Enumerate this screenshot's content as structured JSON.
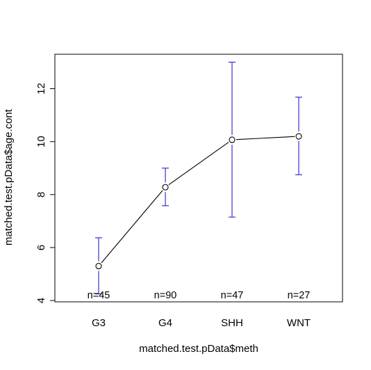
{
  "chart_data": {
    "type": "line",
    "title": "",
    "xlabel": "matched.test.pData$meth",
    "ylabel": "matched.test.pData$age.cont",
    "categories": [
      "G3",
      "G4",
      "SHH",
      "WNT"
    ],
    "values": [
      5.3,
      8.28,
      10.07,
      10.2
    ],
    "ci_lower": [
      4.25,
      7.58,
      7.15,
      8.75
    ],
    "ci_upper": [
      6.37,
      9.0,
      13.0,
      11.68
    ],
    "n_labels": [
      "n=45",
      "n=90",
      "n=47",
      "n=27"
    ],
    "ylim": [
      3.95,
      13.3
    ],
    "yticks": [
      4,
      6,
      8,
      10,
      12
    ],
    "ytick_labels": [
      "4",
      "6",
      "8",
      "10",
      "12"
    ],
    "grid": false,
    "line_color": "#000000",
    "errorbar_color": "#3333cc"
  }
}
